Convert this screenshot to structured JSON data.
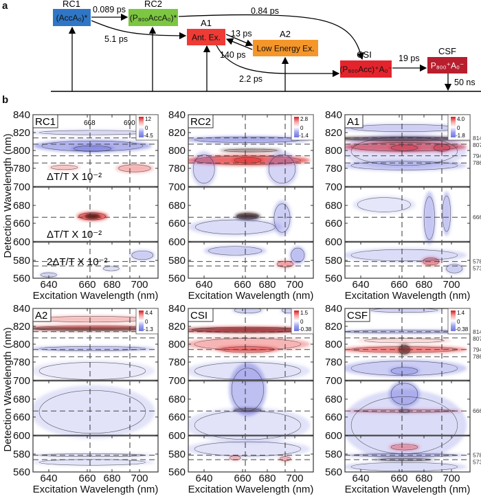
{
  "panel_letters": {
    "a": "a",
    "b": "b"
  },
  "diagram": {
    "states": [
      {
        "id": "RC1",
        "label": "RC1",
        "box": "(AccA₀)*",
        "color": "#2f77c6"
      },
      {
        "id": "RC2",
        "label": "RC2",
        "box": "(P₈₀₀AccA₀)*",
        "color": "#7dc642"
      },
      {
        "id": "A1",
        "label": "A1",
        "box": "Ant. Ex.",
        "color": "#ee3b35"
      },
      {
        "id": "A2",
        "label": "A2",
        "box": "Low Energy Ex.",
        "color": "#f5962a"
      },
      {
        "id": "CSI",
        "label": "CSI",
        "box": "(P₈₀₀Acc)⁺A₀⁻",
        "color": "#e4242d"
      },
      {
        "id": "CSF",
        "label": "CSF",
        "box": "P₈₀₀⁺A₀⁻",
        "color": "#b81e2e"
      }
    ],
    "rates": {
      "rc1_rc2": "0.089 ps",
      "rc2_csi": "0.84 ps",
      "rc1_a1": "5.1 ps",
      "a1_a2": "13 ps",
      "a2_a1": "140 ps",
      "a1_csi": "2.2 ps",
      "csi_csf": "19 ps",
      "csf_decay": "50 ns"
    }
  },
  "axes": {
    "xlabel": "Excitation Wavelength (nm)",
    "ylabel": "Detection Wavelength (nm)",
    "xticks": [
      "640",
      "660",
      "680",
      "700"
    ],
    "yticks": [
      "840",
      "820",
      "800",
      "780",
      "700",
      "680",
      "660",
      "600",
      "580",
      "560"
    ]
  },
  "chart_data": {
    "type": "heatmap",
    "xlabel": "Excitation Wavelength (nm)",
    "ylabel": "Detection Wavelength (nm)",
    "xlim": [
      630,
      710
    ],
    "ylim": [
      560,
      840
    ],
    "panels": [
      {
        "label": "RC1",
        "cb_max": "12",
        "cb_zero": "0",
        "cb_min": "-4.5",
        "guides": [
          "668",
          "690"
        ],
        "notes": [
          "ΔT/T X 10⁻²",
          "ΔT/T X 10⁻²",
          "2ΔT/T X 10⁻²"
        ],
        "marks": []
      },
      {
        "label": "RC2",
        "cb_max": "2.8",
        "cb_zero": "0",
        "cb_min": "-1.4",
        "guides": [],
        "notes": [],
        "marks": []
      },
      {
        "label": "A1",
        "cb_max": "4.0",
        "cb_zero": "0",
        "cb_min": "-1.8",
        "guides": [],
        "notes": [],
        "marks": [
          "814",
          "807",
          "794",
          "786",
          "666",
          "578",
          "573"
        ]
      },
      {
        "label": "A2",
        "cb_max": "4.4",
        "cb_zero": "0",
        "cb_min": "-1.3",
        "guides": [],
        "notes": [],
        "marks": []
      },
      {
        "label": "CSI",
        "cb_max": "1.5",
        "cb_zero": "0",
        "cb_min": "-0.38",
        "guides": [],
        "notes": [],
        "marks": []
      },
      {
        "label": "CSF",
        "cb_max": "1.4",
        "cb_zero": "0",
        "cb_min": "-0.38",
        "guides": [],
        "notes": [],
        "marks": [
          "814",
          "807",
          "794",
          "786",
          "666",
          "578",
          "573"
        ]
      }
    ],
    "colors": {
      "positive": "#e8282a",
      "negative": "#6f73e0",
      "zero": "#ffffff",
      "peak": "#1a1a1a"
    }
  }
}
